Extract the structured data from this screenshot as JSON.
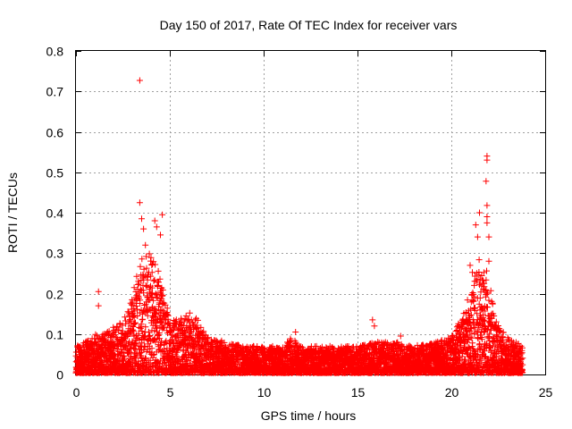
{
  "chart_data": {
    "type": "scatter",
    "title": "Day 150 of 2017, Rate Of TEC Index for receiver vars",
    "xlabel": "GPS time / hours",
    "ylabel": "ROTI / TECUs",
    "xlim": [
      0,
      25
    ],
    "ylim": [
      0,
      0.8
    ],
    "xticks": [
      "0",
      "5",
      "10",
      "15",
      "20",
      "25"
    ],
    "yticks": [
      "0",
      "0.1",
      "0.2",
      "0.3",
      "0.4",
      "0.5",
      "0.6",
      "0.7",
      "0.8"
    ],
    "xtick_values": [
      0,
      5,
      10,
      15,
      20,
      25
    ],
    "ytick_values": [
      0,
      0.1,
      0.2,
      0.3,
      0.4,
      0.5,
      0.6,
      0.7,
      0.8
    ],
    "grid": true,
    "marker": "+",
    "series": [
      {
        "name": "ROTI",
        "color": "#ff0000",
        "profile": {
          "description": "dense ROTI point cloud (approximate envelope read from the plot)",
          "hours": [
            0,
            0.5,
            1,
            1.5,
            2,
            2.5,
            3,
            3.3,
            3.6,
            4,
            4.3,
            4.6,
            5,
            5.5,
            6,
            6.5,
            7,
            8,
            9,
            10,
            11,
            11.5,
            12,
            13,
            14,
            15,
            16,
            17,
            18,
            19,
            20,
            20.5,
            21,
            21.3,
            21.6,
            22,
            22.3,
            22.6,
            23,
            23.5,
            23.8
          ],
          "typical_roti": [
            0.03,
            0.035,
            0.04,
            0.045,
            0.05,
            0.06,
            0.08,
            0.1,
            0.12,
            0.13,
            0.12,
            0.1,
            0.06,
            0.06,
            0.07,
            0.06,
            0.04,
            0.035,
            0.03,
            0.03,
            0.03,
            0.04,
            0.03,
            0.03,
            0.03,
            0.03,
            0.035,
            0.035,
            0.03,
            0.035,
            0.04,
            0.06,
            0.09,
            0.12,
            0.12,
            0.1,
            0.07,
            0.05,
            0.04,
            0.035,
            0.03
          ],
          "upper_roti": [
            0.07,
            0.08,
            0.1,
            0.1,
            0.12,
            0.14,
            0.2,
            0.26,
            0.3,
            0.3,
            0.26,
            0.2,
            0.12,
            0.11,
            0.13,
            0.12,
            0.08,
            0.08,
            0.07,
            0.06,
            0.07,
            0.09,
            0.07,
            0.06,
            0.06,
            0.07,
            0.08,
            0.08,
            0.07,
            0.08,
            0.09,
            0.14,
            0.25,
            0.3,
            0.32,
            0.26,
            0.15,
            0.1,
            0.08,
            0.07,
            0.06
          ]
        },
        "notable_points": [
          {
            "x": 3.4,
            "y": 0.727
          },
          {
            "x": 3.4,
            "y": 0.425
          },
          {
            "x": 3.5,
            "y": 0.385
          },
          {
            "x": 3.6,
            "y": 0.36
          },
          {
            "x": 3.7,
            "y": 0.32
          },
          {
            "x": 4.2,
            "y": 0.38
          },
          {
            "x": 4.3,
            "y": 0.365
          },
          {
            "x": 4.6,
            "y": 0.395
          },
          {
            "x": 4.5,
            "y": 0.345
          },
          {
            "x": 1.2,
            "y": 0.205
          },
          {
            "x": 1.2,
            "y": 0.17
          },
          {
            "x": 3.1,
            "y": 0.215
          },
          {
            "x": 15.8,
            "y": 0.135
          },
          {
            "x": 15.9,
            "y": 0.12
          },
          {
            "x": 11.7,
            "y": 0.105
          },
          {
            "x": 17.3,
            "y": 0.095
          },
          {
            "x": 21.5,
            "y": 0.4
          },
          {
            "x": 21.3,
            "y": 0.37
          },
          {
            "x": 21.4,
            "y": 0.34
          },
          {
            "x": 21.0,
            "y": 0.27
          },
          {
            "x": 21.9,
            "y": 0.54
          },
          {
            "x": 21.9,
            "y": 0.53
          },
          {
            "x": 21.85,
            "y": 0.478
          },
          {
            "x": 21.9,
            "y": 0.418
          },
          {
            "x": 21.9,
            "y": 0.39
          },
          {
            "x": 21.9,
            "y": 0.375
          },
          {
            "x": 22.0,
            "y": 0.34
          },
          {
            "x": 22.0,
            "y": 0.28
          }
        ]
      }
    ]
  }
}
